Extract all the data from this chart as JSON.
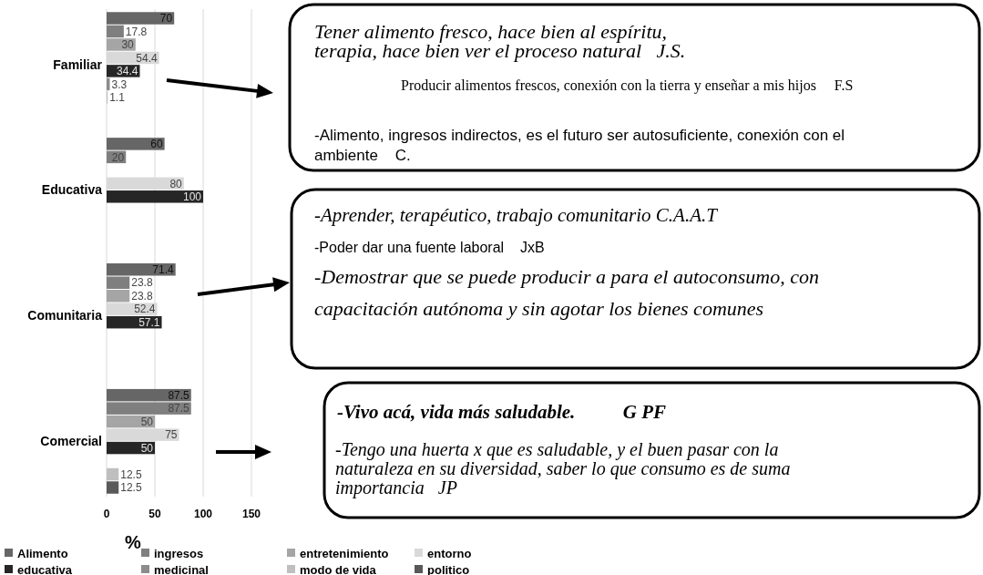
{
  "chart_data": {
    "type": "bar",
    "orientation": "horizontal",
    "xlabel": "%",
    "categories": [
      "Familiar",
      "Educativa",
      "Comunitaria",
      "Comercial"
    ],
    "series": [
      {
        "name": "Alimento",
        "color": "#666666",
        "values": [
          70,
          60,
          71.4,
          87.5
        ]
      },
      {
        "name": "ingresos",
        "color": "#7f7f7f",
        "values": [
          17.8,
          20,
          23.8,
          87.5
        ]
      },
      {
        "name": "entretenimiento",
        "color": "#a5a5a5",
        "values": [
          30,
          null,
          23.8,
          50
        ]
      },
      {
        "name": "entorno",
        "color": "#d9d9d9",
        "values": [
          54.4,
          80,
          52.4,
          75
        ]
      },
      {
        "name": "educativa",
        "color": "#262626",
        "values": [
          34.4,
          100,
          57.1,
          50
        ]
      },
      {
        "name": "medicinal",
        "color": "#8c8c8c",
        "values": [
          3.3,
          null,
          null,
          null
        ]
      },
      {
        "name": "modo de vida",
        "color": "#bfbfbf",
        "values": [
          1.1,
          null,
          null,
          12.5
        ]
      },
      {
        "name": "politico",
        "color": "#595959",
        "values": [
          null,
          null,
          null,
          12.5
        ]
      }
    ],
    "xlim": [
      0,
      150
    ],
    "xticks": [
      0,
      50,
      100,
      150
    ],
    "grid": "x",
    "legend": "bottom",
    "data_labels": true,
    "annotations": [
      "Tener alimento fresco, hace bien al espíritu,\nterapia, hace bien ver el proceso natural   J.S.",
      "Producir alimentos frescos, conexión con la tierra y enseñar a mis hijos     F.S",
      "-Alimento, ingresos indirectos, es el futuro ser autosuficiente, conexión con el\nambiente    C.",
      "-Aprender, terapéutico, trabajo comunitario C.A.A.T",
      "-Poder dar una fuente laboral    JxB",
      "-Demostrar que se puede producir a para el autoconsumo, con\ncapacitación autónoma y sin agotar los bienes comunes",
      "-Vivo acá, vida más saludable.          G PF",
      "-Tengo una huerta x que es saludable, y el buen pasar con la\nnaturaleza en su diversidad, saber lo que consumo es de suma\nimportancia   JP"
    ]
  }
}
